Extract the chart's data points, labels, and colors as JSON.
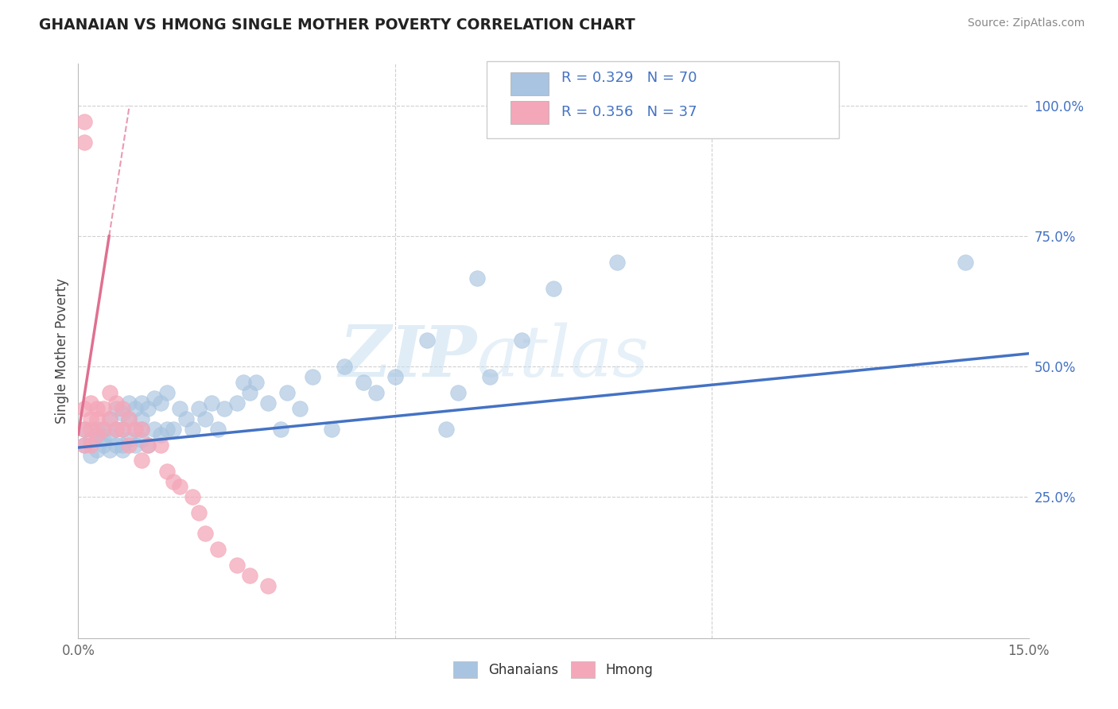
{
  "title": "GHANAIAN VS HMONG SINGLE MOTHER POVERTY CORRELATION CHART",
  "source": "Source: ZipAtlas.com",
  "ylabel": "Single Mother Poverty",
  "xlim": [
    0.0,
    0.15
  ],
  "ylim": [
    -0.02,
    1.08
  ],
  "ghanaian_color": "#a8c4e0",
  "hmong_color": "#f4a7b9",
  "trendline_blue": "#4472c4",
  "trendline_pink": "#e07090",
  "watermark_zip": "ZIP",
  "watermark_atlas": "atlas",
  "legend_r_blue": "0.329",
  "legend_n_blue": "70",
  "legend_r_pink": "0.356",
  "legend_n_pink": "37",
  "ghanaian_x": [
    0.001,
    0.001,
    0.002,
    0.002,
    0.003,
    0.003,
    0.003,
    0.004,
    0.004,
    0.004,
    0.005,
    0.005,
    0.005,
    0.006,
    0.006,
    0.006,
    0.007,
    0.007,
    0.007,
    0.007,
    0.008,
    0.008,
    0.008,
    0.009,
    0.009,
    0.009,
    0.01,
    0.01,
    0.01,
    0.01,
    0.011,
    0.011,
    0.012,
    0.012,
    0.013,
    0.013,
    0.014,
    0.014,
    0.015,
    0.016,
    0.017,
    0.018,
    0.019,
    0.02,
    0.021,
    0.022,
    0.023,
    0.025,
    0.026,
    0.027,
    0.028,
    0.03,
    0.032,
    0.033,
    0.035,
    0.037,
    0.04,
    0.042,
    0.045,
    0.047,
    0.05,
    0.055,
    0.058,
    0.06,
    0.063,
    0.065,
    0.07,
    0.075,
    0.085,
    0.14
  ],
  "ghanaian_y": [
    0.38,
    0.35,
    0.36,
    0.33,
    0.37,
    0.34,
    0.38,
    0.35,
    0.38,
    0.36,
    0.34,
    0.37,
    0.4,
    0.35,
    0.38,
    0.42,
    0.34,
    0.38,
    0.41,
    0.35,
    0.36,
    0.4,
    0.43,
    0.35,
    0.38,
    0.42,
    0.36,
    0.4,
    0.43,
    0.38,
    0.35,
    0.42,
    0.38,
    0.44,
    0.37,
    0.43,
    0.38,
    0.45,
    0.38,
    0.42,
    0.4,
    0.38,
    0.42,
    0.4,
    0.43,
    0.38,
    0.42,
    0.43,
    0.47,
    0.45,
    0.47,
    0.43,
    0.38,
    0.45,
    0.42,
    0.48,
    0.38,
    0.5,
    0.47,
    0.45,
    0.48,
    0.55,
    0.38,
    0.45,
    0.67,
    0.48,
    0.55,
    0.65,
    0.7,
    0.7
  ],
  "hmong_x": [
    0.001,
    0.001,
    0.001,
    0.001,
    0.001,
    0.002,
    0.002,
    0.002,
    0.002,
    0.003,
    0.003,
    0.003,
    0.004,
    0.004,
    0.005,
    0.005,
    0.006,
    0.006,
    0.007,
    0.007,
    0.008,
    0.008,
    0.009,
    0.01,
    0.01,
    0.011,
    0.013,
    0.014,
    0.015,
    0.016,
    0.018,
    0.019,
    0.02,
    0.022,
    0.025,
    0.027,
    0.03
  ],
  "hmong_y": [
    0.97,
    0.93,
    0.42,
    0.38,
    0.35,
    0.43,
    0.4,
    0.38,
    0.35,
    0.42,
    0.4,
    0.37,
    0.42,
    0.38,
    0.45,
    0.4,
    0.38,
    0.43,
    0.42,
    0.38,
    0.35,
    0.4,
    0.38,
    0.32,
    0.38,
    0.35,
    0.35,
    0.3,
    0.28,
    0.27,
    0.25,
    0.22,
    0.18,
    0.15,
    0.12,
    0.1,
    0.08
  ],
  "hmong_trendline_x0": 0.0,
  "hmong_trendline_y0": 0.37,
  "hmong_trendline_x1": 0.005,
  "hmong_trendline_y1": 0.76,
  "blue_trendline_x0": 0.0,
  "blue_trendline_y0": 0.345,
  "blue_trendline_x1": 0.15,
  "blue_trendline_y1": 0.525
}
